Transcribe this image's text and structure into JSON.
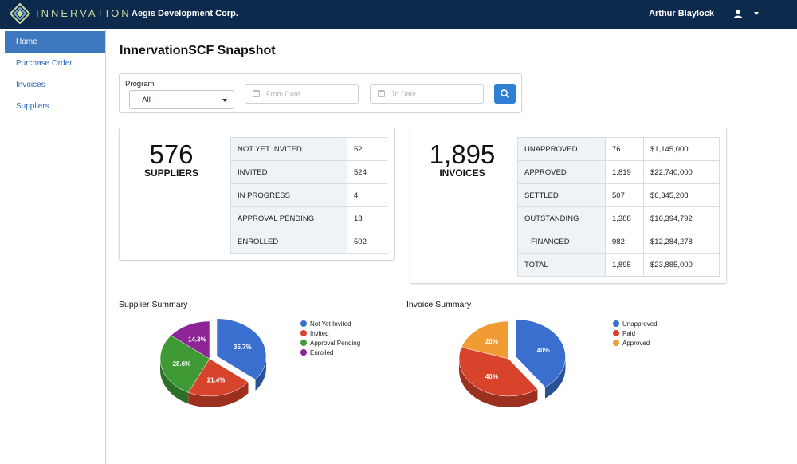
{
  "header": {
    "logo_text": "INNERVATION",
    "company": "Aegis Development Corp.",
    "user": "Arthur Blaylock"
  },
  "sidebar": {
    "items": [
      {
        "label": "Home",
        "active": true
      },
      {
        "label": "Purchase Order",
        "active": false
      },
      {
        "label": "Invoices",
        "active": false
      },
      {
        "label": "Suppliers",
        "active": false
      }
    ]
  },
  "page_title": "InnervationSCF Snapshot",
  "filters": {
    "program_label": "Program",
    "program_value": "- All -",
    "from_date_placeholder": "From Date",
    "to_date_placeholder": "To Date"
  },
  "suppliers_card": {
    "count": "576",
    "label": "SUPPLIERS",
    "rows": [
      {
        "label": "NOT YET INVITED",
        "value": "52"
      },
      {
        "label": "INVITED",
        "value": "524"
      },
      {
        "label": "IN PROGRESS",
        "value": "4"
      },
      {
        "label": "APPROVAL PENDING",
        "value": "18"
      },
      {
        "label": "ENROLLED",
        "value": "502"
      }
    ]
  },
  "invoices_card": {
    "count": "1,895",
    "label": "INVOICES",
    "rows": [
      {
        "label": "UNAPPROVED",
        "count": "76",
        "amount": "$1,145,000"
      },
      {
        "label": "APPROVED",
        "count": "1,819",
        "amount": "$22,740,000"
      },
      {
        "label": "SETTLED",
        "count": "507",
        "amount": "$6,345,208"
      },
      {
        "label": "OUTSTANDING",
        "count": "1,388",
        "amount": "$16,394,792"
      },
      {
        "label": "FINANCED",
        "count": "982",
        "amount": "$12,284,278"
      },
      {
        "label": "TOTAL",
        "count": "1,895",
        "amount": "$23,885,000"
      }
    ]
  },
  "colors": {
    "blue": "#3a6fd0",
    "red": "#d8432c",
    "green": "#3f9a35",
    "purple": "#8e2597",
    "orange": "#f19b34",
    "header_bg": "#0d2a4d",
    "accent": "#2f7fd3"
  },
  "chart_data": [
    {
      "type": "pie",
      "title": "Supplier Summary",
      "labels": [
        "Not Yet Invited",
        "Invited",
        "Approval Pending",
        "Enrolled"
      ],
      "values": [
        35.7,
        21.4,
        28.6,
        14.3
      ],
      "value_labels": [
        "35.7%",
        "21.4%",
        "28.6%",
        "14.3%"
      ],
      "colors": [
        "#3a6fd0",
        "#d8432c",
        "#3f9a35",
        "#8e2597"
      ],
      "legend": "right"
    },
    {
      "type": "pie",
      "title": "Invoice Summary",
      "labels": [
        "Unapproved",
        "Paid",
        "Approved"
      ],
      "values": [
        40,
        40,
        20
      ],
      "value_labels": [
        "40%",
        "40%",
        "20%"
      ],
      "colors": [
        "#3a6fd0",
        "#d8432c",
        "#f19b34"
      ],
      "legend": "right"
    }
  ]
}
